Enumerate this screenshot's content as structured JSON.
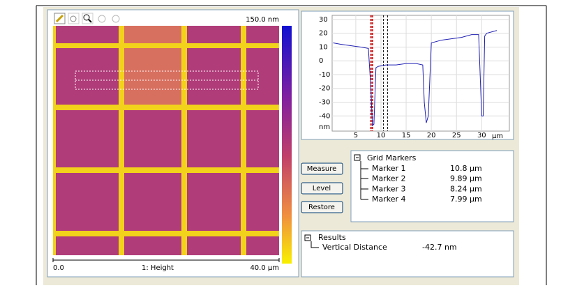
{
  "image_panel": {
    "colorbar_max": "150.0 nm",
    "axis_start": "0.0",
    "channel": "1: Height",
    "axis_end": "40.0 µm"
  },
  "profile": {
    "type": "line",
    "x": [
      0.5,
      2,
      4,
      6,
      7.5,
      8.0,
      8.3,
      8.6,
      9.0,
      9.5,
      11,
      13,
      15,
      17,
      18.3,
      18.6,
      19.0,
      19.4,
      20,
      22,
      24,
      26,
      28,
      29.4,
      29.7,
      30.0,
      30.3,
      30.6,
      31,
      33
    ],
    "values": [
      13,
      12,
      11,
      10,
      9,
      -20,
      -47,
      -46,
      -5,
      -4,
      -3,
      -3,
      -2,
      -2,
      -3,
      -30,
      -45,
      -40,
      13,
      15,
      16,
      17,
      19,
      19,
      -10,
      -40,
      -40,
      18,
      20,
      22
    ],
    "color": "#1f1fb4",
    "xlim": [
      0.3,
      35.5
    ],
    "ylim": [
      -51,
      33
    ],
    "xticks": [
      5,
      10,
      15,
      20,
      25,
      30
    ],
    "yticks": [
      30,
      20,
      10,
      0,
      -10,
      -20,
      -30,
      -40
    ],
    "x_unit": "µm",
    "y_unit": "nm",
    "grid": true,
    "cursors": [
      {
        "x": 8.0,
        "color": "#d02020"
      },
      {
        "x": 8.3,
        "color": "#d02020"
      },
      {
        "x": 10.5,
        "color": "#000000"
      },
      {
        "x": 11.3,
        "color": "#000000"
      }
    ]
  },
  "buttons": [
    "Measure",
    "Level",
    "Restore"
  ],
  "grid_markers": {
    "title": "Grid Markers",
    "rows": [
      [
        "Marker 1",
        "10.8 µm"
      ],
      [
        "Marker 2",
        "9.89 µm"
      ],
      [
        "Marker 3",
        "8.24 µm"
      ],
      [
        "Marker 4",
        "7.99 µm"
      ]
    ]
  },
  "results": {
    "title": "Results",
    "rows": [
      [
        "Vertical Distance",
        "-42.7 nm"
      ]
    ]
  }
}
